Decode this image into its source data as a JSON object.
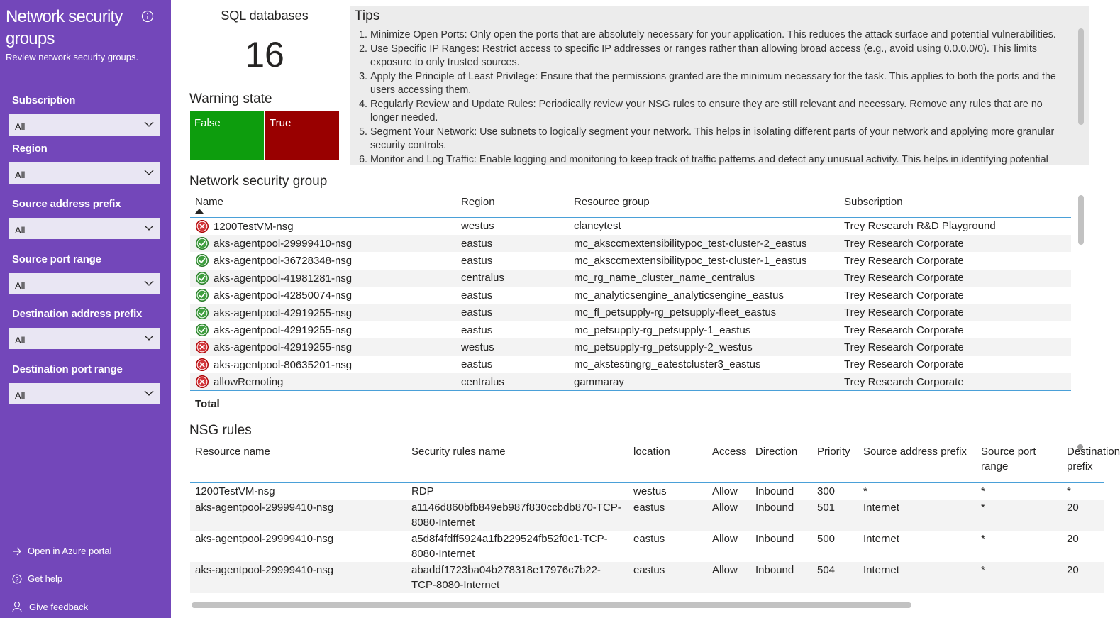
{
  "sidebar": {
    "title": "Network security groups",
    "subtitle": "Review network security groups.",
    "filters": [
      {
        "label": "Subscription",
        "value": "All"
      },
      {
        "label": "Region",
        "value": "All"
      },
      {
        "label": "Source address prefix",
        "value": "All"
      },
      {
        "label": "Source port range",
        "value": "All"
      },
      {
        "label": "Destination address prefix",
        "value": "All"
      },
      {
        "label": "Destination port range",
        "value": "All"
      }
    ],
    "links": [
      "Open in Azure portal",
      "Get help",
      "Give feedback"
    ]
  },
  "sql_tile": {
    "title": "SQL databases",
    "value": 16
  },
  "warning_state": {
    "title": "Warning state",
    "items": [
      "False",
      "True"
    ]
  },
  "tips": {
    "title": "Tips",
    "items": [
      "Minimize Open Ports: Only open the ports that are absolutely necessary for your application. This reduces the attack surface and potential vulnerabilities.",
      "Use Specific IP Ranges: Restrict access to specific IP addresses or ranges rather than allowing broad access (e.g., avoid using 0.0.0.0/0). This limits exposure to only trusted sources.",
      "Apply the Principle of Least Privilege: Ensure that the permissions granted are the minimum necessary for the task. This applies to both the ports and the users accessing them.",
      "Regularly Review and Update Rules: Periodically review your NSG rules to ensure they are still relevant and necessary. Remove any rules that are no longer needed.",
      "Segment Your Network: Use subnets to logically segment your network. This helps in isolating different parts of your network and applying more granular security controls.",
      "Monitor and Log Traffic: Enable logging and monitoring to keep track of traffic patterns and detect any unusual activity. This helps in identifying potential"
    ]
  },
  "nsg_table": {
    "title": "Network security group",
    "columns": [
      "Name",
      "Region",
      "Resource group",
      "Subscription"
    ],
    "rows": [
      {
        "status": "error",
        "cells": [
          "1200TestVM-nsg",
          "westus",
          "clancytest",
          "Trey Research R&D Playground"
        ]
      },
      {
        "status": "ok",
        "cells": [
          "aks-agentpool-29999410-nsg",
          "eastus",
          "mc_aksccmextensibilitypoc_test-cluster-2_eastus",
          "Trey Research Corporate"
        ]
      },
      {
        "status": "ok",
        "cells": [
          "aks-agentpool-36728348-nsg",
          "eastus",
          "mc_aksccmextensibilitypoc_test-cluster-1_eastus",
          "Trey Research Corporate"
        ]
      },
      {
        "status": "ok",
        "cells": [
          "aks-agentpool-41981281-nsg",
          "centralus",
          "mc_rg_name_cluster_name_centralus",
          "Trey Research Corporate"
        ]
      },
      {
        "status": "ok",
        "cells": [
          "aks-agentpool-42850074-nsg",
          "eastus",
          "mc_analyticsengine_analyticsengine_eastus",
          "Trey Research Corporate"
        ]
      },
      {
        "status": "ok",
        "cells": [
          "aks-agentpool-42919255-nsg",
          "eastus",
          "mc_fl_petsupply-rg_petsupply-fleet_eastus",
          "Trey Research Corporate"
        ]
      },
      {
        "status": "ok",
        "cells": [
          "aks-agentpool-42919255-nsg",
          "eastus",
          "mc_petsupply-rg_petsupply-1_eastus",
          "Trey Research Corporate"
        ]
      },
      {
        "status": "error",
        "cells": [
          "aks-agentpool-42919255-nsg",
          "westus",
          "mc_petsupply-rg_petsupply-2_westus",
          "Trey Research Corporate"
        ]
      },
      {
        "status": "error",
        "cells": [
          "aks-agentpool-80635201-nsg",
          "eastus",
          "mc_akstestingrg_eatestcluster3_eastus",
          "Trey Research Corporate"
        ]
      },
      {
        "status": "error",
        "cells": [
          "allowRemoting",
          "centralus",
          "gammaray",
          "Trey Research Corporate"
        ]
      }
    ],
    "total": "Total"
  },
  "rules_table": {
    "title": "NSG rules",
    "columns": [
      "Resource name",
      "Security rules name",
      "location",
      "Access",
      "Direction",
      "Priority",
      "Source address prefix",
      "Source port range",
      "Destination prefix"
    ],
    "rows": [
      [
        "1200TestVM-nsg",
        "RDP",
        "westus",
        "Allow",
        "Inbound",
        "300",
        "*",
        "*",
        "*"
      ],
      [
        "aks-agentpool-29999410-nsg",
        "a1146d860bfb849eb987f830ccbdb870-TCP-8080-Internet",
        "eastus",
        "Allow",
        "Inbound",
        "501",
        "Internet",
        "*",
        "20"
      ],
      [
        "aks-agentpool-29999410-nsg",
        "a5d8f4fdff5924a1fb229524fb52f0c1-TCP-8080-Internet",
        "eastus",
        "Allow",
        "Inbound",
        "500",
        "Internet",
        "*",
        "20"
      ],
      [
        "aks-agentpool-29999410-nsg",
        "abaddf1723ba04b278318e17976c7b22-TCP-8080-Internet",
        "eastus",
        "Allow",
        "Inbound",
        "504",
        "Internet",
        "*",
        "20"
      ]
    ]
  }
}
